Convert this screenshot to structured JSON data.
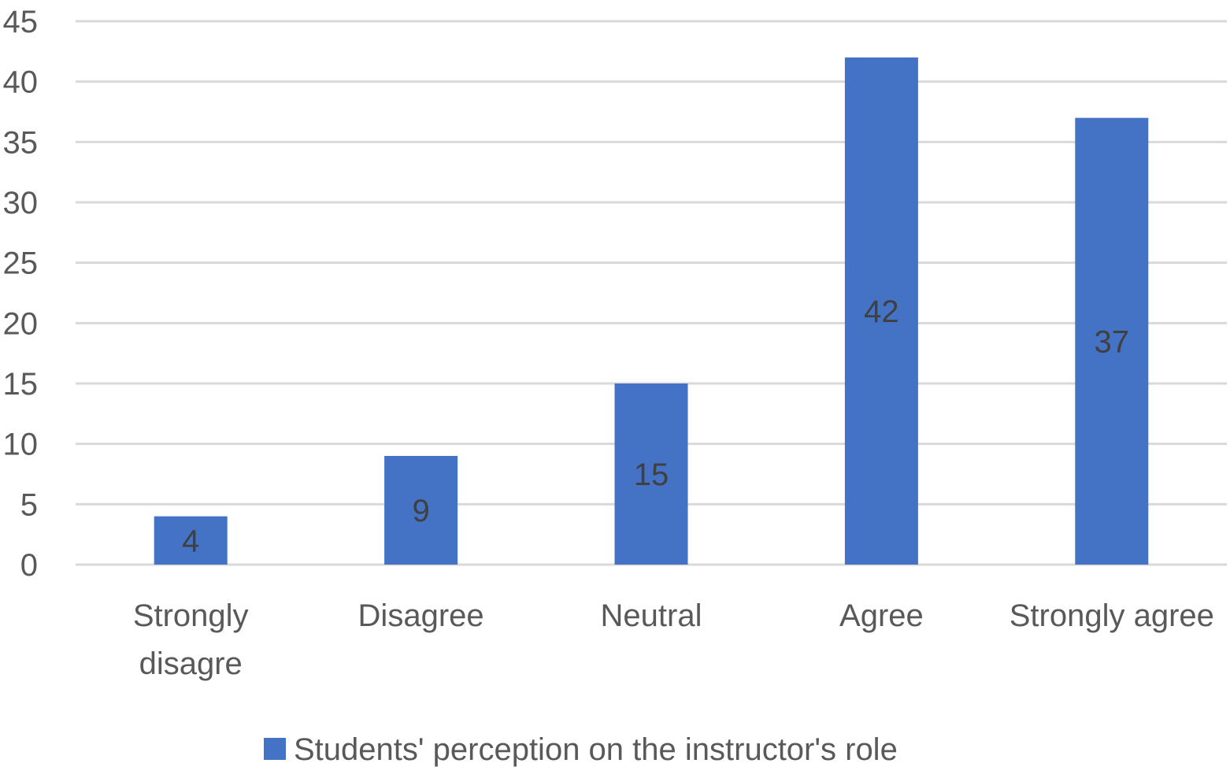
{
  "chart_data": {
    "type": "bar",
    "categories": [
      [
        "Strongly",
        "disagre"
      ],
      [
        "Disagree"
      ],
      [
        "Neutral"
      ],
      [
        "Agree"
      ],
      [
        "Strongly agree"
      ]
    ],
    "series": [
      {
        "name": "Students' perception on the instructor's role",
        "values": [
          4,
          9,
          15,
          42,
          37
        ]
      }
    ],
    "ylim": [
      0,
      45
    ],
    "yticks": [
      0,
      5,
      10,
      15,
      20,
      25,
      30,
      35,
      40,
      45
    ],
    "grid": true,
    "legend_position": "bottom",
    "data_labels": "center",
    "colors": {
      "bar": "#4472C4",
      "grid": "#D9D9D9",
      "text": "#595959",
      "data_label": "#404040"
    }
  }
}
